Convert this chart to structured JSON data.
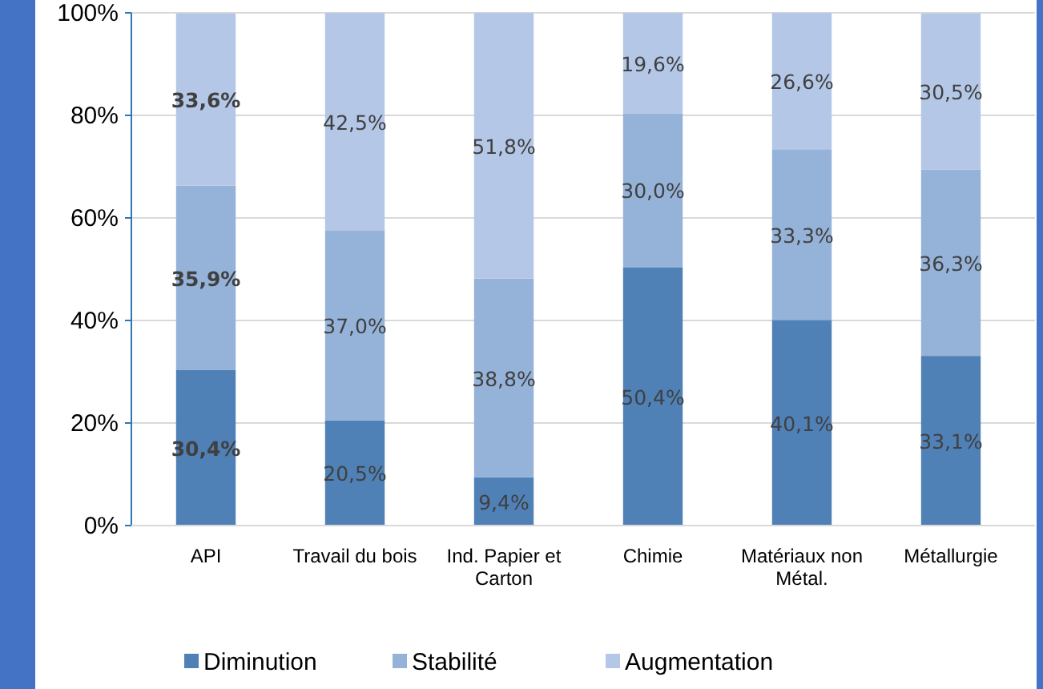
{
  "chart_data": {
    "type": "bar",
    "stacked": true,
    "categories": [
      "API",
      "Travail du bois",
      "Ind. Papier et Carton",
      "Chimie",
      "Matériaux non Métal.",
      "Métallurgie"
    ],
    "series": [
      {
        "name": "Diminution",
        "color": "#4f81b7",
        "values": [
          30.4,
          20.5,
          9.4,
          50.4,
          40.1,
          33.1
        ],
        "value_labels": [
          "30,4%",
          "20,5%",
          "9,4%",
          "50,4%",
          "40,1%",
          "33,1%"
        ]
      },
      {
        "name": "Stabilité",
        "color": "#95b3d9",
        "values": [
          35.9,
          37.0,
          38.8,
          30.0,
          33.3,
          36.3
        ],
        "value_labels": [
          "35,9%",
          "37,0%",
          "38,8%",
          "30,0%",
          "33,3%",
          "36,3%"
        ]
      },
      {
        "name": "Augmentation",
        "color": "#b4c7e7",
        "values": [
          33.6,
          42.5,
          51.8,
          19.6,
          26.6,
          30.5
        ],
        "value_labels": [
          "33,6%",
          "42,5%",
          "51,8%",
          "19,6%",
          "26,6%",
          "30,5%"
        ]
      }
    ],
    "ylim": [
      0,
      100
    ],
    "yticks": [
      {
        "value": 0,
        "label": "0%"
      },
      {
        "value": 20,
        "label": "20%"
      },
      {
        "value": 40,
        "label": "40%"
      },
      {
        "value": 60,
        "label": "60%"
      },
      {
        "value": 80,
        "label": "80%"
      },
      {
        "value": 100,
        "label": "100%"
      }
    ],
    "grid": "y",
    "legend": "bottom"
  }
}
